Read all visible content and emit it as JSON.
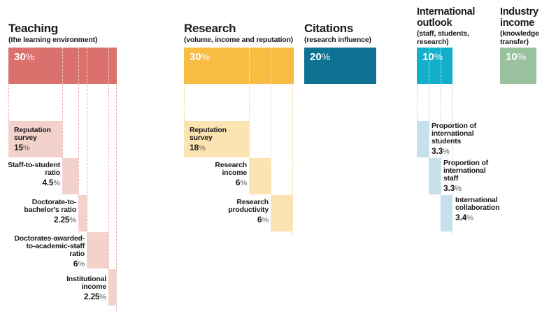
{
  "chart_data": {
    "type": "bar",
    "unit": "percent",
    "categories": [
      "Teaching",
      "Research",
      "Citations",
      "International outlook",
      "Industry income"
    ],
    "values": [
      30,
      30,
      20,
      10,
      10
    ],
    "category_descriptions": [
      "(the learning environment)",
      "(volume, income and reputation)",
      "(research influence)",
      "(staff, students, research)",
      "(knowledge transfer)"
    ],
    "breakdown": {
      "Teaching": [
        {
          "label": "Reputation survey",
          "value": 15
        },
        {
          "label": "Staff-to-student ratio",
          "value": 4.5
        },
        {
          "label": "Doctorate-to-bachelor's ratio",
          "value": 2.25
        },
        {
          "label": "Doctorates-awarded-to-academic-staff ratio",
          "value": 6
        },
        {
          "label": "Institutional income",
          "value": 2.25
        }
      ],
      "Research": [
        {
          "label": "Reputation survey",
          "value": 18
        },
        {
          "label": "Research income",
          "value": 6
        },
        {
          "label": "Research productivity",
          "value": 6
        }
      ],
      "International outlook": [
        {
          "label": "Proportion of international students",
          "value": 3.3
        },
        {
          "label": "Proportion of international staff",
          "value": 3.3
        },
        {
          "label": "International collaboration",
          "value": 3.4
        }
      ]
    }
  },
  "colors": {
    "teaching": "#db716c",
    "teaching_light": "#f4d2cc",
    "teaching_guide": "#e79d97",
    "research": "#f8bc42",
    "research_light": "#fce4b2",
    "research_guide": "#f3cd82",
    "citations": "#0e7392",
    "international": "#12afcb",
    "international_light": "#c7e1ec",
    "international_guide": "#8fd4e2",
    "industry": "#9bc29f",
    "text": "#1a1a1a"
  },
  "columns": [
    {
      "title_lines": [
        "Teaching"
      ],
      "subtitle_lines": [
        "(the learning environment)"
      ],
      "weight": "30%",
      "rows": [
        {
          "label_lines": [
            "Reputation",
            "survey"
          ],
          "value": "15%"
        },
        {
          "label_lines": [
            "Staff-to-student",
            "ratio"
          ],
          "value": "4.5%"
        },
        {
          "label_lines": [
            "Doctorate-to-",
            "bachelor's ratio"
          ],
          "value": "2.25%"
        },
        {
          "label_lines": [
            "Doctorates-awarded-",
            "to-academic-staff",
            "ratio"
          ],
          "value": "6%"
        },
        {
          "label_lines": [
            "Institutional",
            "income"
          ],
          "value": "2.25%"
        }
      ]
    },
    {
      "title_lines": [
        "Research"
      ],
      "subtitle_lines": [
        "(volume, income and reputation)"
      ],
      "weight": "30%",
      "rows": [
        {
          "label_lines": [
            "Reputation",
            "survey"
          ],
          "value": "18%"
        },
        {
          "label_lines": [
            "Research",
            "income"
          ],
          "value": "6%"
        },
        {
          "label_lines": [
            "Research",
            "productivity"
          ],
          "value": "6%"
        }
      ]
    },
    {
      "title_lines": [
        "Citations"
      ],
      "subtitle_lines": [
        "(research influence)"
      ],
      "weight": "20%",
      "rows": []
    },
    {
      "title_lines": [
        "International",
        "outlook"
      ],
      "subtitle_lines": [
        "(staff, students,",
        "research)"
      ],
      "weight": "10%",
      "rows": [
        {
          "label_lines": [
            "Proportion of",
            "international",
            "students"
          ],
          "value": "3.3%"
        },
        {
          "label_lines": [
            "Proportion of",
            "international",
            "staff"
          ],
          "value": "3.3%"
        },
        {
          "label_lines": [
            "International",
            "collaboration"
          ],
          "value": "3.4%"
        }
      ]
    },
    {
      "title_lines": [
        "Industry",
        "income"
      ],
      "subtitle_lines": [
        "(knowledge",
        "transfer)"
      ],
      "weight": "10%",
      "rows": []
    }
  ]
}
